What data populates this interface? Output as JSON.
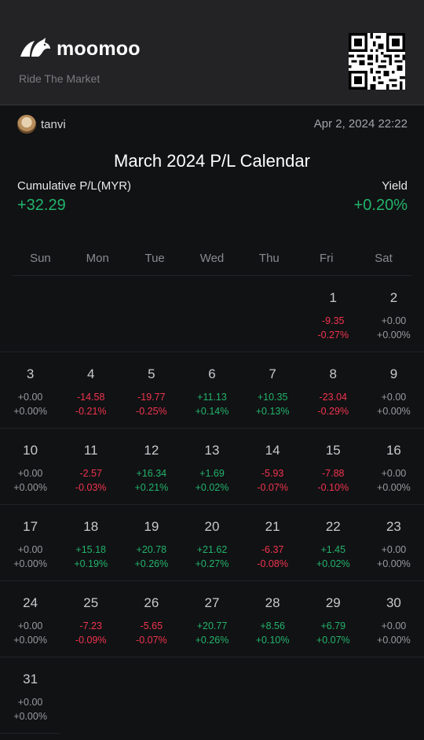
{
  "header": {
    "brand": "moomoo",
    "slogan": "Ride The Market"
  },
  "user": {
    "name": "tanvi",
    "datetime": "Apr 2, 2024 22:22"
  },
  "title": "March 2024 P/L Calendar",
  "summary": {
    "cumulative_label": "Cumulative P/L(MYR)",
    "cumulative_value": "+32.29",
    "yield_label": "Yield",
    "yield_value": "+0.20%"
  },
  "colors": {
    "positive": "#22b36b",
    "negative": "#f0344e",
    "neutral": "#9a9a9e"
  },
  "weekdays": [
    "Sun",
    "Mon",
    "Tue",
    "Wed",
    "Thu",
    "Fri",
    "Sat"
  ],
  "leading_blank_days": 5,
  "days": [
    {
      "day": "1",
      "pl": "-9.35",
      "pct": "-0.27%",
      "dir": "neg"
    },
    {
      "day": "2",
      "pl": "+0.00",
      "pct": "+0.00%",
      "dir": "zero"
    },
    {
      "day": "3",
      "pl": "+0.00",
      "pct": "+0.00%",
      "dir": "zero"
    },
    {
      "day": "4",
      "pl": "-14.58",
      "pct": "-0.21%",
      "dir": "neg"
    },
    {
      "day": "5",
      "pl": "-19.77",
      "pct": "-0.25%",
      "dir": "neg"
    },
    {
      "day": "6",
      "pl": "+11.13",
      "pct": "+0.14%",
      "dir": "pos"
    },
    {
      "day": "7",
      "pl": "+10.35",
      "pct": "+0.13%",
      "dir": "pos"
    },
    {
      "day": "8",
      "pl": "-23.04",
      "pct": "-0.29%",
      "dir": "neg"
    },
    {
      "day": "9",
      "pl": "+0.00",
      "pct": "+0.00%",
      "dir": "zero"
    },
    {
      "day": "10",
      "pl": "+0.00",
      "pct": "+0.00%",
      "dir": "zero"
    },
    {
      "day": "11",
      "pl": "-2.57",
      "pct": "-0.03%",
      "dir": "neg"
    },
    {
      "day": "12",
      "pl": "+16.34",
      "pct": "+0.21%",
      "dir": "pos"
    },
    {
      "day": "13",
      "pl": "+1.69",
      "pct": "+0.02%",
      "dir": "pos"
    },
    {
      "day": "14",
      "pl": "-5.93",
      "pct": "-0.07%",
      "dir": "neg"
    },
    {
      "day": "15",
      "pl": "-7.88",
      "pct": "-0.10%",
      "dir": "neg"
    },
    {
      "day": "16",
      "pl": "+0.00",
      "pct": "+0.00%",
      "dir": "zero"
    },
    {
      "day": "17",
      "pl": "+0.00",
      "pct": "+0.00%",
      "dir": "zero"
    },
    {
      "day": "18",
      "pl": "+15.18",
      "pct": "+0.19%",
      "dir": "pos"
    },
    {
      "day": "19",
      "pl": "+20.78",
      "pct": "+0.26%",
      "dir": "pos"
    },
    {
      "day": "20",
      "pl": "+21.62",
      "pct": "+0.27%",
      "dir": "pos"
    },
    {
      "day": "21",
      "pl": "-6.37",
      "pct": "-0.08%",
      "dir": "neg"
    },
    {
      "day": "22",
      "pl": "+1.45",
      "pct": "+0.02%",
      "dir": "pos"
    },
    {
      "day": "23",
      "pl": "+0.00",
      "pct": "+0.00%",
      "dir": "zero"
    },
    {
      "day": "24",
      "pl": "+0.00",
      "pct": "+0.00%",
      "dir": "zero"
    },
    {
      "day": "25",
      "pl": "-7.23",
      "pct": "-0.09%",
      "dir": "neg"
    },
    {
      "day": "26",
      "pl": "-5.65",
      "pct": "-0.07%",
      "dir": "neg"
    },
    {
      "day": "27",
      "pl": "+20.77",
      "pct": "+0.26%",
      "dir": "pos"
    },
    {
      "day": "28",
      "pl": "+8.56",
      "pct": "+0.10%",
      "dir": "pos"
    },
    {
      "day": "29",
      "pl": "+6.79",
      "pct": "+0.07%",
      "dir": "pos"
    },
    {
      "day": "30",
      "pl": "+0.00",
      "pct": "+0.00%",
      "dir": "zero"
    },
    {
      "day": "31",
      "pl": "+0.00",
      "pct": "+0.00%",
      "dir": "zero"
    }
  ]
}
